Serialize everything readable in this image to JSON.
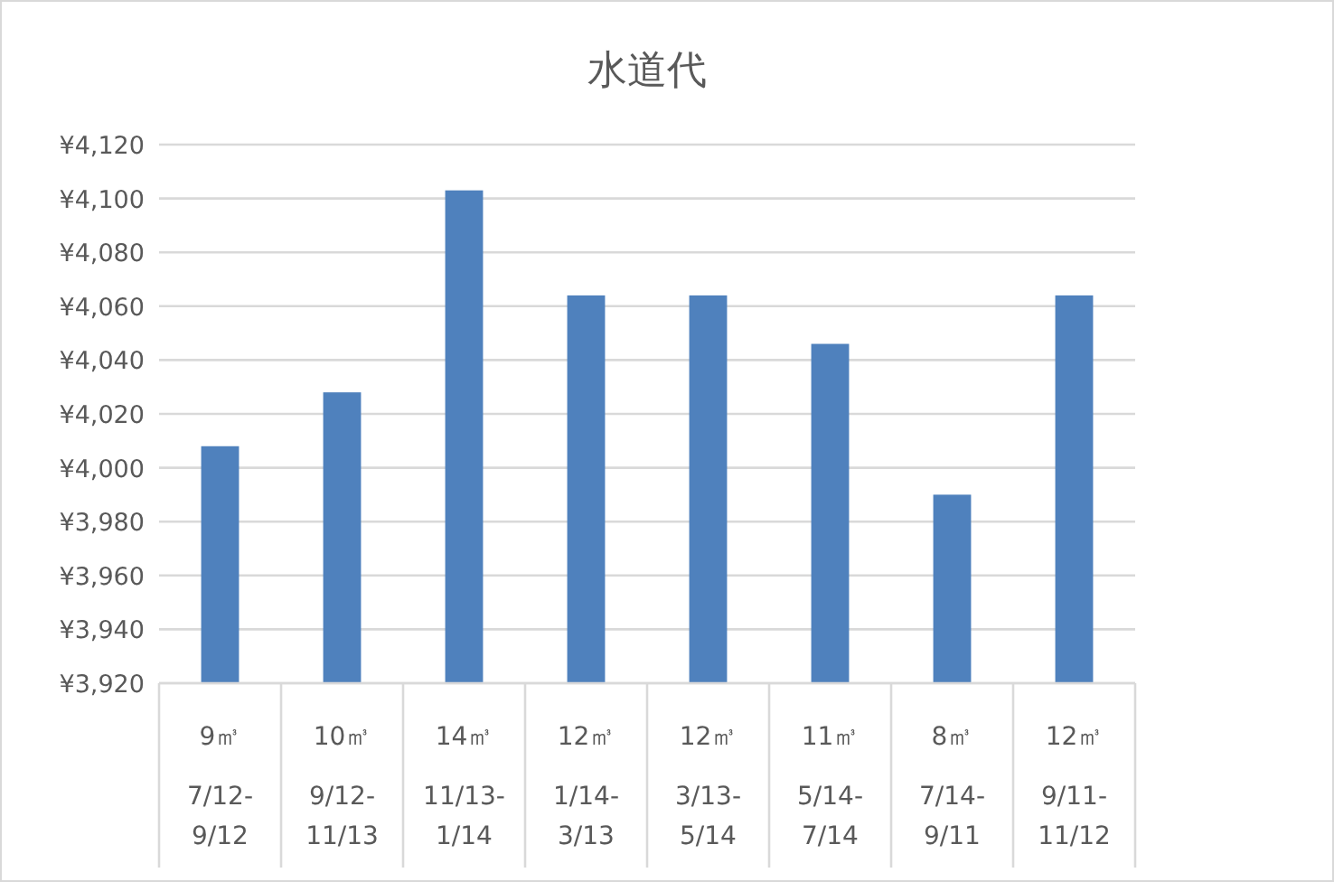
{
  "chart_data": {
    "type": "bar",
    "title": "水道代",
    "categories": [
      "9㎥\n7/12-\n9/12",
      "10㎥\n9/12-\n11/13",
      "14㎥\n11/13-\n1/14",
      "12㎥\n1/14-\n3/13",
      "12㎥\n3/13-\n5/14",
      "11㎥\n5/14-\n7/14",
      "8㎥\n7/14-\n9/11",
      "12㎥\n9/11-\n11/12"
    ],
    "values": [
      4008,
      4028,
      4103,
      4064,
      4064,
      4046,
      3990,
      4064
    ],
    "color": "#4f81bd",
    "ylim": [
      3920,
      4120
    ],
    "yticks": [
      {
        "value": 3920,
        "label": "¥3,920"
      },
      {
        "value": 3940,
        "label": "¥3,940"
      },
      {
        "value": 3960,
        "label": "¥3,960"
      },
      {
        "value": 3980,
        "label": "¥3,980"
      },
      {
        "value": 4000,
        "label": "¥4,000"
      },
      {
        "value": 4020,
        "label": "¥4,020"
      },
      {
        "value": 4040,
        "label": "¥4,040"
      },
      {
        "value": 4060,
        "label": "¥4,060"
      },
      {
        "value": 4080,
        "label": "¥4,080"
      },
      {
        "value": 4100,
        "label": "¥4,100"
      },
      {
        "value": 4120,
        "label": "¥4,120"
      }
    ],
    "grid": "y"
  }
}
